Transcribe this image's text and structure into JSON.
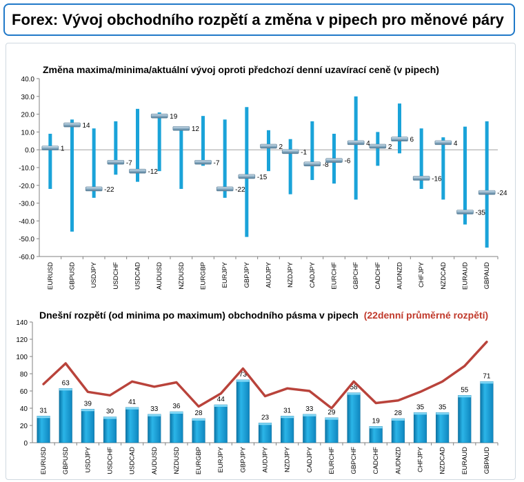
{
  "header": {
    "title": "Forex: Vývoj obchodního rozpětí a změna v pipech pro měnové páry"
  },
  "colors": {
    "accent": "#1f78c8",
    "bar": "#1aa3d9",
    "bar_dark": "#0b78a8",
    "marker": "#8fb2c8",
    "line": "#c0392b",
    "highlight_text": "#c0392b"
  },
  "chart_data": [
    {
      "type": "range-bar",
      "title": "Změna maxima/minima/aktuální vývoj oproti předchozí denní uzavírací ceně (v pipech)",
      "ylim": [
        -60,
        40
      ],
      "yticks": [
        "40.0",
        "30.0",
        "20.0",
        "10.0",
        "0.0",
        "-10.0",
        "-20.0",
        "-30.0",
        "-40.0",
        "-50.0",
        "-60.0"
      ],
      "grid": false,
      "categories": [
        "EURUSD",
        "GBPUSD",
        "USDJPY",
        "USDCHF",
        "USDCAD",
        "AUDUSD",
        "NZDUSD",
        "EURGBP",
        "EURJPY",
        "GBPJPY",
        "AUDJPY",
        "NZDJPY",
        "CADJPY",
        "EURCHF",
        "GBPCHF",
        "CADCHF",
        "AUDNZD",
        "CHFJPY",
        "NZDCAD",
        "EURAUD",
        "GBPAUD"
      ],
      "high": [
        9,
        17,
        12,
        16,
        23,
        21,
        13,
        19,
        17,
        24,
        11,
        6,
        16,
        9,
        30,
        10,
        26,
        12,
        7,
        13,
        16
      ],
      "low": [
        -22,
        -46,
        -27,
        -14,
        -18,
        -12,
        -22,
        -9,
        -27,
        -49,
        -12,
        -25,
        -17,
        -19,
        -28,
        -9,
        -2,
        -22,
        -28,
        -42,
        -55
      ],
      "current": [
        1,
        14,
        -22,
        -7,
        -12,
        19,
        12,
        -7,
        -22,
        -15,
        2,
        -1,
        -8,
        -6,
        4,
        2,
        6,
        -16,
        4,
        -35,
        -24
      ],
      "current_labels": [
        "1",
        "14",
        "-22",
        "-7",
        "-12",
        "19",
        "12",
        "-7",
        "-22",
        "-15",
        "2",
        "-1",
        "-8",
        "-6",
        "4",
        "2",
        "6",
        "-16",
        "4",
        "-35",
        "-24"
      ]
    },
    {
      "type": "bar+line",
      "title": "Dnešní rozpětí (od minima po maximum) obchodního pásma v pipech",
      "title_highlight": "(22denní průměrné rozpětí)",
      "ylim": [
        0,
        140
      ],
      "yticks": [
        "140",
        "120",
        "100",
        "80",
        "60",
        "40",
        "20",
        "0"
      ],
      "grid": false,
      "categories": [
        "EURUSD",
        "GBPUSD",
        "USDJPY",
        "USDCHF",
        "USDCAD",
        "AUDUSD",
        "NZDUSD",
        "EURGBP",
        "EURJPY",
        "GBPJPY",
        "AUDJPY",
        "NZDJPY",
        "CADJPY",
        "EURCHF",
        "GBPCHF",
        "CADCHF",
        "AUDNZD",
        "CHFJPY",
        "NZDCAD",
        "EURAUD",
        "GBPAUD"
      ],
      "values": [
        31,
        63,
        39,
        30,
        41,
        33,
        36,
        28,
        44,
        73,
        23,
        31,
        33,
        29,
        58,
        19,
        28,
        35,
        35,
        55,
        71
      ],
      "value_labels": [
        "31",
        "63",
        "39",
        "30",
        "41",
        "33",
        "36",
        "28",
        "44",
        "73",
        "23",
        "31",
        "33",
        "29",
        "58",
        "19",
        "28",
        "35",
        "35",
        "55",
        "71"
      ],
      "average_22d": [
        68,
        92,
        59,
        55,
        71,
        65,
        70,
        42,
        57,
        86,
        54,
        63,
        60,
        40,
        71,
        46,
        49,
        59,
        71,
        89,
        117
      ]
    }
  ]
}
